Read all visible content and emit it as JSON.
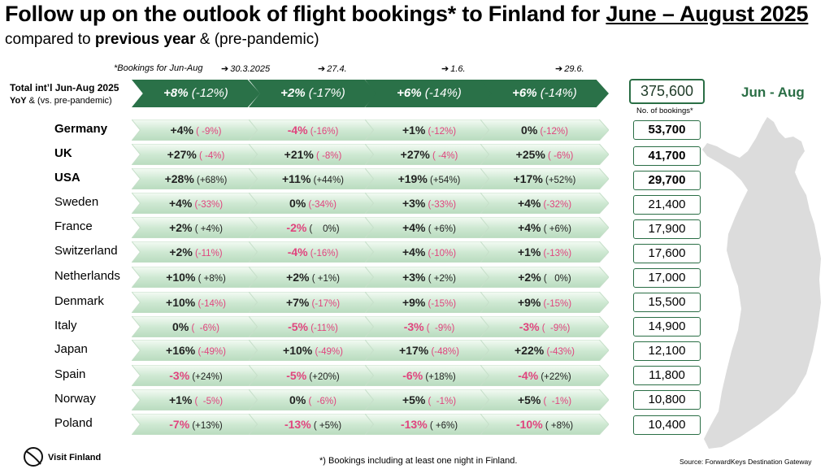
{
  "title": {
    "main": "Follow up on the outlook of flight bookings* to Finland for ",
    "underlined": "June – August 2025"
  },
  "subtitle": {
    "pre": "compared to ",
    "bold": "previous year",
    "post": " & (pre-pandemic)"
  },
  "bookings_note": "*Bookings for Jun-Aug",
  "dates": [
    "30.3.2025",
    "27.4.",
    "1.6.",
    "29.6."
  ],
  "total_label": {
    "line1": "Total int’l Jun-Aug 2025",
    "line2_bold": "YoY",
    "line2_rest": " & (vs. pre-pandemic)"
  },
  "total_bookings": "375,600",
  "no_of_bookings_label": "No. of bookings*",
  "period_label": "Jun - Aug",
  "footnote": "*) Bookings including at least one night in Finland.",
  "source": "Source: ForwardKeys Destination Gateway",
  "logo_text": "Visit Finland",
  "colors": {
    "dark_green": "#2a7148",
    "negative": "#e0447e",
    "light_green": "#d3ecd6"
  },
  "chart_data": {
    "type": "table",
    "title": "Follow up on the outlook of flight bookings* to Finland for June – August 2025",
    "columns": [
      "30.3.2025",
      "27.4.",
      "1.6.",
      "29.6."
    ],
    "totals": [
      {
        "yoy": "+8%",
        "pre": "(-12%)"
      },
      {
        "yoy": "+2%",
        "pre": "(-17%)"
      },
      {
        "yoy": "+6%",
        "pre": "(-14%)"
      },
      {
        "yoy": "+6%",
        "pre": "(-14%)"
      }
    ],
    "rows": [
      {
        "country": "Germany",
        "bold": true,
        "bookings": "53,700",
        "cells": [
          {
            "yoy": "+4%",
            "pre": "( -9%)",
            "yoy_neg": false,
            "pre_neg": true
          },
          {
            "yoy": "-4%",
            "pre": "(-16%)",
            "yoy_neg": true,
            "pre_neg": true
          },
          {
            "yoy": "+1%",
            "pre": "(-12%)",
            "yoy_neg": false,
            "pre_neg": true
          },
          {
            "yoy": "0%",
            "pre": "(-12%)",
            "yoy_neg": false,
            "pre_neg": true
          }
        ]
      },
      {
        "country": "UK",
        "bold": true,
        "bookings": "41,700",
        "cells": [
          {
            "yoy": "+27%",
            "pre": "( -4%)",
            "yoy_neg": false,
            "pre_neg": true
          },
          {
            "yoy": "+21%",
            "pre": "( -8%)",
            "yoy_neg": false,
            "pre_neg": true
          },
          {
            "yoy": "+27%",
            "pre": "( -4%)",
            "yoy_neg": false,
            "pre_neg": true
          },
          {
            "yoy": "+25%",
            "pre": "( -6%)",
            "yoy_neg": false,
            "pre_neg": true
          }
        ]
      },
      {
        "country": "USA",
        "bold": true,
        "bookings": "29,700",
        "cells": [
          {
            "yoy": "+28%",
            "pre": "(+68%)",
            "yoy_neg": false,
            "pre_neg": false
          },
          {
            "yoy": "+11%",
            "pre": "(+44%)",
            "yoy_neg": false,
            "pre_neg": false
          },
          {
            "yoy": "+19%",
            "pre": "(+54%)",
            "yoy_neg": false,
            "pre_neg": false
          },
          {
            "yoy": "+17%",
            "pre": "(+52%)",
            "yoy_neg": false,
            "pre_neg": false
          }
        ]
      },
      {
        "country": "Sweden",
        "bold": false,
        "bookings": "21,400",
        "cells": [
          {
            "yoy": "+4%",
            "pre": "(-33%)",
            "yoy_neg": false,
            "pre_neg": true
          },
          {
            "yoy": "0%",
            "pre": "(-34%)",
            "yoy_neg": false,
            "pre_neg": true
          },
          {
            "yoy": "+3%",
            "pre": "(-33%)",
            "yoy_neg": false,
            "pre_neg": true
          },
          {
            "yoy": "+4%",
            "pre": "(-32%)",
            "yoy_neg": false,
            "pre_neg": true
          }
        ]
      },
      {
        "country": "France",
        "bold": false,
        "bookings": "17,900",
        "cells": [
          {
            "yoy": "+2%",
            "pre": "( +4%)",
            "yoy_neg": false,
            "pre_neg": false
          },
          {
            "yoy": "-2%",
            "pre": "(    0%)",
            "yoy_neg": true,
            "pre_neg": false
          },
          {
            "yoy": "+4%",
            "pre": "( +6%)",
            "yoy_neg": false,
            "pre_neg": false
          },
          {
            "yoy": "+4%",
            "pre": "( +6%)",
            "yoy_neg": false,
            "pre_neg": false
          }
        ]
      },
      {
        "country": "Switzerland",
        "bold": false,
        "bookings": "17,600",
        "cells": [
          {
            "yoy": "+2%",
            "pre": "(-11%)",
            "yoy_neg": false,
            "pre_neg": true
          },
          {
            "yoy": "-4%",
            "pre": "(-16%)",
            "yoy_neg": true,
            "pre_neg": true
          },
          {
            "yoy": "+4%",
            "pre": "(-10%)",
            "yoy_neg": false,
            "pre_neg": true
          },
          {
            "yoy": "+1%",
            "pre": "(-13%)",
            "yoy_neg": false,
            "pre_neg": true
          }
        ]
      },
      {
        "country": "Netherlands",
        "bold": false,
        "bookings": "17,000",
        "cells": [
          {
            "yoy": "+10%",
            "pre": "( +8%)",
            "yoy_neg": false,
            "pre_neg": false
          },
          {
            "yoy": "+2%",
            "pre": "( +1%)",
            "yoy_neg": false,
            "pre_neg": false
          },
          {
            "yoy": "+3%",
            "pre": "( +2%)",
            "yoy_neg": false,
            "pre_neg": false
          },
          {
            "yoy": "+2%",
            "pre": "(   0%)",
            "yoy_neg": false,
            "pre_neg": false
          }
        ]
      },
      {
        "country": "Denmark",
        "bold": false,
        "bookings": "15,500",
        "cells": [
          {
            "yoy": "+10%",
            "pre": "(-14%)",
            "yoy_neg": false,
            "pre_neg": true
          },
          {
            "yoy": "+7%",
            "pre": "(-17%)",
            "yoy_neg": false,
            "pre_neg": true
          },
          {
            "yoy": "+9%",
            "pre": "(-15%)",
            "yoy_neg": false,
            "pre_neg": true
          },
          {
            "yoy": "+9%",
            "pre": "(-15%)",
            "yoy_neg": false,
            "pre_neg": true
          }
        ]
      },
      {
        "country": "Italy",
        "bold": false,
        "bookings": "14,900",
        "cells": [
          {
            "yoy": "0%",
            "pre": "(  -6%)",
            "yoy_neg": false,
            "pre_neg": true
          },
          {
            "yoy": "-5%",
            "pre": "(-11%)",
            "yoy_neg": true,
            "pre_neg": true
          },
          {
            "yoy": "-3%",
            "pre": "(  -9%)",
            "yoy_neg": true,
            "pre_neg": true
          },
          {
            "yoy": "-3%",
            "pre": "(  -9%)",
            "yoy_neg": true,
            "pre_neg": true
          }
        ]
      },
      {
        "country": "Japan",
        "bold": false,
        "bookings": "12,100",
        "cells": [
          {
            "yoy": "+16%",
            "pre": "(-49%)",
            "yoy_neg": false,
            "pre_neg": true
          },
          {
            "yoy": "+10%",
            "pre": "(-49%)",
            "yoy_neg": false,
            "pre_neg": true
          },
          {
            "yoy": "+17%",
            "pre": "(-48%)",
            "yoy_neg": false,
            "pre_neg": true
          },
          {
            "yoy": "+22%",
            "pre": "(-43%)",
            "yoy_neg": false,
            "pre_neg": true
          }
        ]
      },
      {
        "country": "Spain",
        "bold": false,
        "bookings": "11,800",
        "cells": [
          {
            "yoy": "-3%",
            "pre": "(+24%)",
            "yoy_neg": true,
            "pre_neg": false
          },
          {
            "yoy": "-5%",
            "pre": "(+20%)",
            "yoy_neg": true,
            "pre_neg": false
          },
          {
            "yoy": "-6%",
            "pre": "(+18%)",
            "yoy_neg": true,
            "pre_neg": false
          },
          {
            "yoy": "-4%",
            "pre": "(+22%)",
            "yoy_neg": true,
            "pre_neg": false
          }
        ]
      },
      {
        "country": "Norway",
        "bold": false,
        "bookings": "10,800",
        "cells": [
          {
            "yoy": "+1%",
            "pre": "(  -5%)",
            "yoy_neg": false,
            "pre_neg": true
          },
          {
            "yoy": "0%",
            "pre": "(  -6%)",
            "yoy_neg": false,
            "pre_neg": true
          },
          {
            "yoy": "+5%",
            "pre": "(  -1%)",
            "yoy_neg": false,
            "pre_neg": true
          },
          {
            "yoy": "+5%",
            "pre": "(  -1%)",
            "yoy_neg": false,
            "pre_neg": true
          }
        ]
      },
      {
        "country": "Poland",
        "bold": false,
        "bookings": "10,400",
        "cells": [
          {
            "yoy": "-7%",
            "pre": "(+13%)",
            "yoy_neg": true,
            "pre_neg": false
          },
          {
            "yoy": "-13%",
            "pre": "( +5%)",
            "yoy_neg": true,
            "pre_neg": false
          },
          {
            "yoy": "-13%",
            "pre": "( +6%)",
            "yoy_neg": true,
            "pre_neg": false
          },
          {
            "yoy": "-10%",
            "pre": "( +8%)",
            "yoy_neg": true,
            "pre_neg": false
          }
        ]
      }
    ]
  }
}
